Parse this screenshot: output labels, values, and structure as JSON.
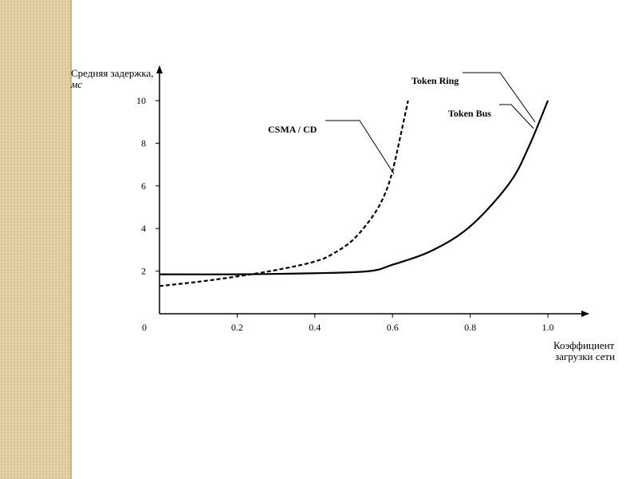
{
  "colors": {
    "side_strip": "#e4d2a6",
    "axis": "#000000",
    "line": "#000000"
  },
  "chart_data": {
    "type": "line",
    "title": "",
    "ylabel": "Средняя задержка,",
    "ylabel_unit": "мс",
    "xlabel_line1": "Коэффициент",
    "xlabel_line2": "загрузки сети",
    "origin_label": "0",
    "xlim": [
      0,
      1.1
    ],
    "ylim": [
      0,
      12
    ],
    "x_ticks": [
      {
        "value": 0.2,
        "label": "0.2"
      },
      {
        "value": 0.4,
        "label": "0.4"
      },
      {
        "value": 0.6,
        "label": "0.6"
      },
      {
        "value": 0.8,
        "label": "0.8"
      },
      {
        "value": 1.0,
        "label": "1.0"
      }
    ],
    "y_ticks": [
      {
        "value": 2,
        "label": "2"
      },
      {
        "value": 4,
        "label": "4"
      },
      {
        "value": 6,
        "label": "6"
      },
      {
        "value": 8,
        "label": "8"
      },
      {
        "value": 10,
        "label": "10"
      }
    ],
    "series": [
      {
        "name": "CSMA / CD",
        "style": "dashed",
        "x": [
          0,
          0.1,
          0.2,
          0.3,
          0.4,
          0.45,
          0.5,
          0.55,
          0.58,
          0.6,
          0.62,
          0.64
        ],
        "y": [
          1.3,
          1.5,
          1.75,
          2.05,
          2.45,
          2.85,
          3.5,
          4.6,
          5.6,
          6.7,
          8.3,
          10.0
        ]
      },
      {
        "name": "Token Ring",
        "style": "solid",
        "x": [
          0,
          0.2,
          0.4,
          0.54,
          0.6,
          0.7,
          0.8,
          0.9,
          0.95,
          1.0
        ],
        "y": [
          1.85,
          1.85,
          1.9,
          2.0,
          2.3,
          2.95,
          4.1,
          6.1,
          7.8,
          10.0
        ]
      }
    ],
    "labels": [
      {
        "text": "CSMA  / CD"
      },
      {
        "text": "Token Ring"
      },
      {
        "text": "Token Bus"
      }
    ]
  }
}
